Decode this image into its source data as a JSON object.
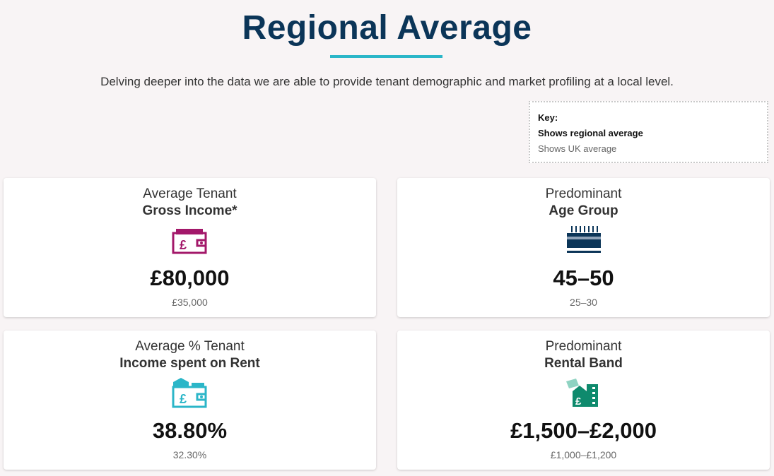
{
  "header": {
    "title": "Regional Average",
    "intro": "Delving deeper into the data we are able to provide tenant demographic and market profiling at a local level."
  },
  "key": {
    "title": "Key:",
    "regional": "Shows regional average",
    "uk": "Shows UK average"
  },
  "cards": [
    {
      "line1": "Average Tenant",
      "line2": "Gross Income*",
      "icon": "wallet-pound-icon",
      "icon_color": "#a3186a",
      "value": "£80,000",
      "uk_value": "£35,000"
    },
    {
      "line1": "Predominant",
      "line2": "Age Group",
      "icon": "birthday-cake-icon",
      "icon_color": "#0b3558",
      "value": "45–50",
      "uk_value": "25–30"
    },
    {
      "line1": "Average % Tenant",
      "line2": "Income spent on Rent",
      "icon": "wallet-house-icon",
      "icon_color": "#2bb6c8",
      "value": "38.80%",
      "uk_value": "32.30%"
    },
    {
      "line1": "Predominant",
      "line2": "Rental Band",
      "icon": "property-price-tag-icon",
      "icon_color": "#0e8a6d",
      "value": "£1,500–£2,000",
      "uk_value": "£1,000–£1,200"
    }
  ],
  "colors": {
    "title": "#0b3558",
    "accent": "#2bb6c8",
    "background": "#f8f4f5"
  }
}
